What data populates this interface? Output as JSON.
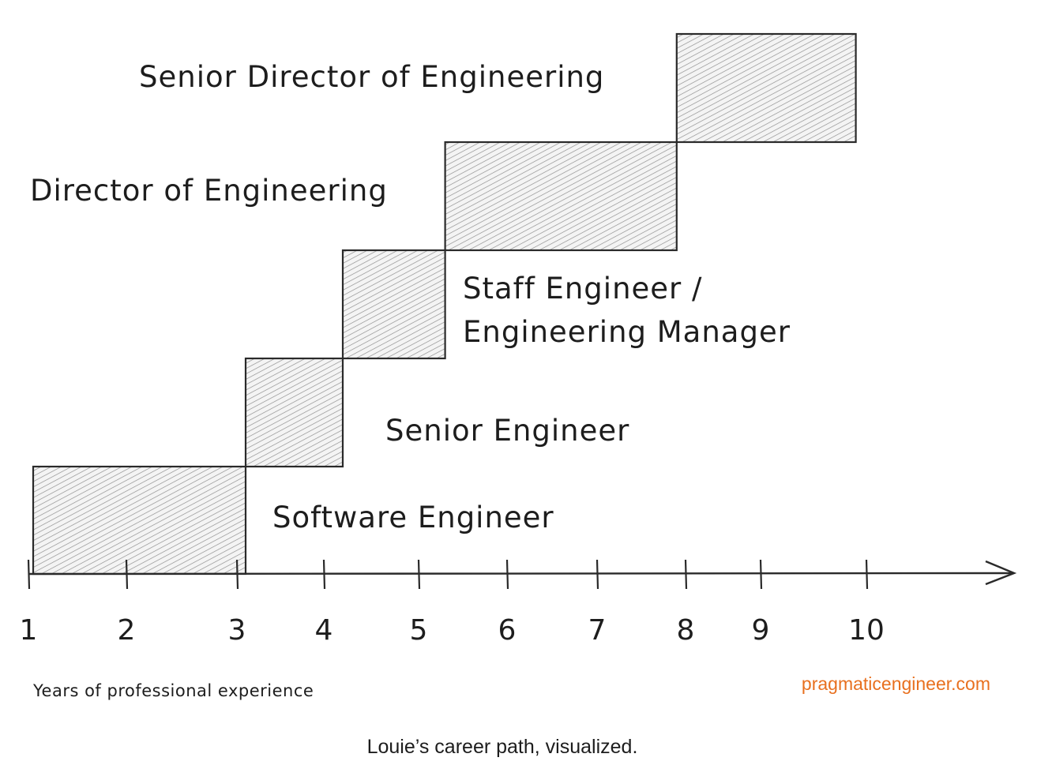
{
  "chart_data": {
    "type": "bar",
    "xlabel": "Years of professional experience",
    "ticks": [
      1,
      2,
      3,
      4,
      5,
      6,
      7,
      8,
      9,
      10
    ],
    "stages": [
      {
        "name": "Software Engineer",
        "start": 1,
        "end": 3.1
      },
      {
        "name": "Senior Engineer",
        "start": 3.1,
        "end": 4.2
      },
      {
        "name": "Staff Engineer / Engineering Manager",
        "line1": "Staff Engineer /",
        "line2": "Engineering Manager",
        "start": 4.2,
        "end": 5.3
      },
      {
        "name": "Director of Engineering",
        "start": 5.3,
        "end": 7.9
      },
      {
        "name": "Senior Director of Engineering",
        "start": 7.9,
        "end": 9.9
      }
    ]
  },
  "brand": "pragmaticengineer.com",
  "caption": "Louie’s career path, visualized."
}
